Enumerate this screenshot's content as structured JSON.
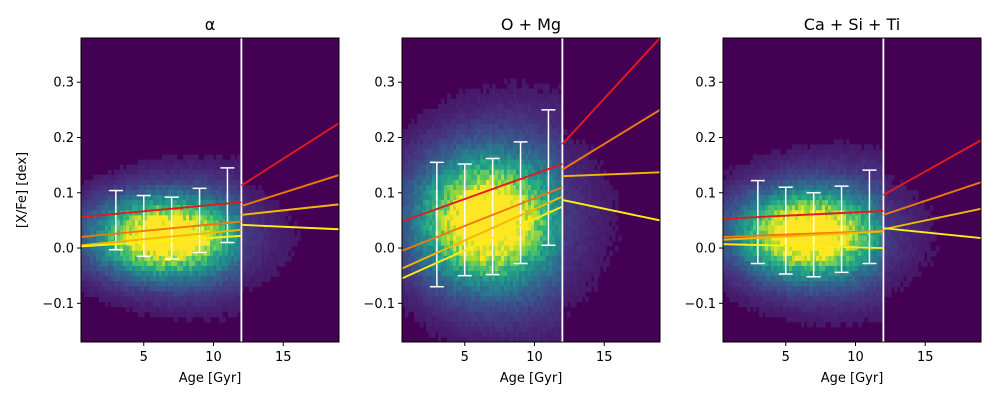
{
  "chart_data": [
    {
      "type": "heatmap",
      "title": "α",
      "xlabel": "Age [Gyr]",
      "ylabel": "[X/Fe] [dex]",
      "xlim": [
        0.5,
        19
      ],
      "ylim": [
        -0.17,
        0.38
      ],
      "xticks": [
        "5",
        "10",
        "15"
      ],
      "yticks": [
        "−0.1",
        "0.0",
        "0.1",
        "0.2",
        "0.3"
      ],
      "divider_age": 12,
      "density_center": {
        "age": 6.5,
        "xfe": 0.02
      },
      "density_spread": {
        "age": 3.3,
        "xfe": 0.045
      },
      "error_bars": [
        {
          "age": 3,
          "center": 0.05,
          "low": -0.003,
          "high": 0.104
        },
        {
          "age": 5,
          "center": 0.04,
          "low": -0.015,
          "high": 0.095
        },
        {
          "age": 7,
          "center": 0.035,
          "low": -0.02,
          "high": 0.092
        },
        {
          "age": 9,
          "center": 0.05,
          "low": -0.008,
          "high": 0.108
        },
        {
          "age": 11,
          "center": 0.077,
          "low": 0.01,
          "high": 0.145
        }
      ],
      "series": [
        {
          "name": "red",
          "color": "#e31a1c",
          "segments": [
            [
              0.5,
              0.056,
              12,
              0.083
            ],
            [
              12,
              0.113,
              19,
              0.226
            ]
          ]
        },
        {
          "name": "orange",
          "color": "#f0780f",
          "segments": [
            [
              0.5,
              0.02,
              12,
              0.048
            ],
            [
              12,
              0.076,
              19,
              0.132
            ]
          ]
        },
        {
          "name": "gold",
          "color": "#f5b800",
          "segments": [
            [
              0.5,
              0.005,
              12,
              0.033
            ],
            [
              12,
              0.06,
              19,
              0.079
            ]
          ]
        },
        {
          "name": "yellow",
          "color": "#ffee10",
          "segments": [
            [
              0.5,
              0.003,
              12,
              0.022
            ],
            [
              12,
              0.042,
              19,
              0.034
            ]
          ]
        }
      ]
    },
    {
      "type": "heatmap",
      "title": "O + Mg",
      "xlabel": "Age [Gyr]",
      "ylabel": "",
      "xlim": [
        0.5,
        19
      ],
      "ylim": [
        -0.17,
        0.38
      ],
      "xticks": [
        "5",
        "10",
        "15"
      ],
      "yticks": [
        "−0.1",
        "0.0",
        "0.1",
        "0.2",
        "0.3"
      ],
      "divider_age": 12,
      "density_center": {
        "age": 6.5,
        "xfe": 0.05
      },
      "density_spread": {
        "age": 3.3,
        "xfe": 0.075
      },
      "error_bars": [
        {
          "age": 3,
          "center": 0.042,
          "low": -0.07,
          "high": 0.155
        },
        {
          "age": 5,
          "center": 0.05,
          "low": -0.05,
          "high": 0.152
        },
        {
          "age": 7,
          "center": 0.057,
          "low": -0.048,
          "high": 0.162
        },
        {
          "age": 9,
          "center": 0.082,
          "low": -0.028,
          "high": 0.192
        },
        {
          "age": 11,
          "center": 0.128,
          "low": 0.005,
          "high": 0.25
        }
      ],
      "series": [
        {
          "name": "red",
          "color": "#e31a1c",
          "segments": [
            [
              0.5,
              0.048,
              12,
              0.152
            ],
            [
              12,
              0.188,
              19,
              0.38
            ]
          ]
        },
        {
          "name": "orange",
          "color": "#f0780f",
          "segments": [
            [
              0.5,
              -0.005,
              12,
              0.11
            ],
            [
              12,
              0.142,
              19,
              0.25
            ]
          ]
        },
        {
          "name": "gold",
          "color": "#f5b800",
          "segments": [
            [
              0.5,
              -0.037,
              12,
              0.093
            ],
            [
              12,
              0.13,
              19,
              0.137
            ]
          ]
        },
        {
          "name": "yellow",
          "color": "#ffee10",
          "segments": [
            [
              0.5,
              -0.055,
              12,
              0.075
            ],
            [
              12,
              0.087,
              19,
              0.05
            ]
          ]
        }
      ]
    },
    {
      "type": "heatmap",
      "title": "Ca + Si + Ti",
      "xlabel": "Age [Gyr]",
      "ylabel": "",
      "xlim": [
        0.5,
        19
      ],
      "ylim": [
        -0.17,
        0.38
      ],
      "xticks": [
        "5",
        "10",
        "15"
      ],
      "yticks": [
        "−0.1",
        "0.0",
        "0.1",
        "0.2",
        "0.3"
      ],
      "divider_age": 12,
      "density_center": {
        "age": 6.5,
        "xfe": 0.025
      },
      "density_spread": {
        "age": 3.3,
        "xfe": 0.05
      },
      "error_bars": [
        {
          "age": 3,
          "center": 0.047,
          "low": -0.028,
          "high": 0.122
        },
        {
          "age": 5,
          "center": 0.032,
          "low": -0.047,
          "high": 0.11
        },
        {
          "age": 7,
          "center": 0.024,
          "low": -0.052,
          "high": 0.1
        },
        {
          "age": 9,
          "center": 0.034,
          "low": -0.044,
          "high": 0.112
        },
        {
          "age": 11,
          "center": 0.057,
          "low": -0.028,
          "high": 0.141
        }
      ],
      "series": [
        {
          "name": "red",
          "color": "#e31a1c",
          "segments": [
            [
              0.5,
              0.053,
              12,
              0.067
            ],
            [
              12,
              0.096,
              19,
              0.195
            ]
          ]
        },
        {
          "name": "orange",
          "color": "#f0780f",
          "segments": [
            [
              0.5,
              0.02,
              12,
              0.031
            ],
            [
              12,
              0.06,
              19,
              0.119
            ]
          ]
        },
        {
          "name": "gold",
          "color": "#f5b800",
          "segments": [
            [
              0.5,
              0.015,
              12,
              0.03
            ],
            [
              12,
              0.034,
              19,
              0.071
            ]
          ]
        },
        {
          "name": "yellow",
          "color": "#ffee10",
          "segments": [
            [
              0.5,
              0.007,
              12,
              0.0
            ],
            [
              12,
              0.036,
              19,
              0.018
            ]
          ]
        }
      ]
    }
  ]
}
